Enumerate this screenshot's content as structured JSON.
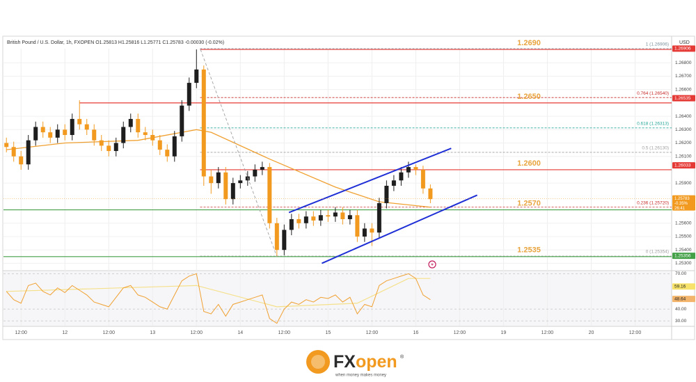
{
  "chart_data": {
    "type": "candlestick",
    "title": "British Pound / U.S. Dollar, 1h, FXOPEN  O1.25813  H1.25816  L1.25771  C1.25783  -0.00030 (-0.02%)",
    "currency": "USD",
    "up_color": "#1e1e1e",
    "down_color": "#f29a1f",
    "x": [
      -16,
      -14,
      -12,
      -10,
      -8,
      -6,
      -4,
      -2,
      0,
      2,
      4,
      6,
      8,
      10,
      12,
      14,
      16,
      18,
      20,
      22,
      24,
      26,
      28,
      30,
      32,
      34,
      36,
      38,
      40,
      42,
      44,
      46,
      48,
      50,
      52,
      54,
      56,
      58,
      60,
      62,
      64,
      66,
      68,
      70,
      72,
      74,
      76,
      78,
      80,
      82,
      84,
      86,
      88,
      90,
      92,
      94,
      96,
      98,
      100
    ],
    "open": [
      1.262,
      1.2617,
      1.261,
      1.2604,
      1.2622,
      1.2632,
      1.2628,
      1.2624,
      1.263,
      1.2626,
      1.2638,
      1.2634,
      1.263,
      1.2622,
      1.2618,
      1.2614,
      1.262,
      1.2632,
      1.2638,
      1.2628,
      1.2626,
      1.2622,
      1.2615,
      1.261,
      1.2625,
      1.2648,
      1.2665,
      1.2675,
      1.2595,
      1.259,
      1.2598,
      1.2578,
      1.259,
      1.2592,
      1.2595,
      1.26,
      1.2602,
      1.256,
      1.254,
      1.2555,
      1.2563,
      1.256,
      1.2565,
      1.2562,
      1.2566,
      1.2565,
      1.2568,
      1.2563,
      1.2566,
      1.255,
      1.2556,
      1.2553,
      1.2575,
      1.2588,
      1.2592,
      1.2598,
      1.2602,
      1.26,
      1.2586
    ],
    "high": [
      1.2624,
      1.2621,
      1.2614,
      1.2626,
      1.2636,
      1.2636,
      1.2632,
      1.2634,
      1.2634,
      1.2642,
      1.2652,
      1.2638,
      1.2634,
      1.2626,
      1.2622,
      1.2624,
      1.2636,
      1.2642,
      1.2642,
      1.2632,
      1.263,
      1.2626,
      1.2619,
      1.2629,
      1.2652,
      1.2669,
      1.269,
      1.2678,
      1.26,
      1.2602,
      1.2602,
      1.2594,
      1.2596,
      1.2599,
      1.2604,
      1.2606,
      1.2605,
      1.2564,
      1.2559,
      1.2567,
      1.2567,
      1.2569,
      1.2569,
      1.257,
      1.257,
      1.2572,
      1.2572,
      1.257,
      1.257,
      1.256,
      1.256,
      1.2579,
      1.2592,
      1.2596,
      1.2602,
      1.2606,
      1.2604,
      1.2603,
      1.2589
    ],
    "low": [
      1.2613,
      1.2606,
      1.26,
      1.26,
      1.2618,
      1.2624,
      1.262,
      1.262,
      1.2622,
      1.2622,
      1.263,
      1.2626,
      1.2618,
      1.2614,
      1.261,
      1.261,
      1.2616,
      1.2628,
      1.2624,
      1.2622,
      1.2618,
      1.2611,
      1.2606,
      1.2606,
      1.2621,
      1.2644,
      1.2661,
      1.2588,
      1.2582,
      1.2586,
      1.2574,
      1.2574,
      1.2586,
      1.2588,
      1.2591,
      1.2596,
      1.2556,
      1.2535,
      1.2536,
      1.2551,
      1.2556,
      1.2556,
      1.2558,
      1.2558,
      1.2561,
      1.2561,
      1.2559,
      1.2559,
      1.2546,
      1.2546,
      1.2543,
      1.2549,
      1.2571,
      1.2584,
      1.2588,
      1.2594,
      1.2596,
      1.2582,
      1.2575
    ],
    "close": [
      1.2617,
      1.261,
      1.2604,
      1.2622,
      1.2632,
      1.2628,
      1.2624,
      1.263,
      1.2626,
      1.2638,
      1.2634,
      1.263,
      1.2622,
      1.2618,
      1.2614,
      1.262,
      1.2632,
      1.2638,
      1.2628,
      1.2626,
      1.2622,
      1.2615,
      1.261,
      1.2625,
      1.2648,
      1.2665,
      1.2675,
      1.2595,
      1.259,
      1.2598,
      1.2578,
      1.259,
      1.2592,
      1.2595,
      1.26,
      1.2602,
      1.256,
      1.254,
      1.2555,
      1.2563,
      1.256,
      1.2565,
      1.2562,
      1.2566,
      1.2565,
      1.2568,
      1.2563,
      1.2566,
      1.255,
      1.2556,
      1.2553,
      1.2575,
      1.2588,
      1.2592,
      1.2598,
      1.2602,
      1.26,
      1.2586,
      1.2578
    ],
    "xlim": [
      -16.8,
      166
    ],
    "xticks": [
      {
        "value": -12,
        "label": "12:00"
      },
      {
        "value": 0,
        "label": "12"
      },
      {
        "value": 12,
        "label": "12:00"
      },
      {
        "value": 24,
        "label": "13"
      },
      {
        "value": 36,
        "label": "12:00"
      },
      {
        "value": 48,
        "label": "14"
      },
      {
        "value": 60,
        "label": "12:00"
      },
      {
        "value": 72,
        "label": "15"
      },
      {
        "value": 84,
        "label": "12:00"
      },
      {
        "value": 96,
        "label": "16"
      },
      {
        "value": 108,
        "label": "12:00"
      },
      {
        "value": 120,
        "label": "19"
      },
      {
        "value": 132,
        "label": "12:00"
      },
      {
        "value": 144,
        "label": "20"
      },
      {
        "value": 156,
        "label": "12:00"
      }
    ],
    "ylim": [
      1.2525,
      1.2702
    ],
    "yticks": [
      {
        "value": 1.253,
        "label": "1.25300"
      },
      {
        "value": 1.254,
        "label": "1.25400"
      },
      {
        "value": 1.255,
        "label": "1.25500"
      },
      {
        "value": 1.256,
        "label": "1.25600"
      },
      {
        "value": 1.259,
        "label": "1.25900"
      },
      {
        "value": 1.261,
        "label": "1.26100"
      },
      {
        "value": 1.262,
        "label": "1.26200"
      },
      {
        "value": 1.263,
        "label": "1.26300"
      },
      {
        "value": 1.264,
        "label": "1.26400"
      },
      {
        "value": 1.266,
        "label": "1.26600"
      },
      {
        "value": 1.267,
        "label": "1.26700"
      },
      {
        "value": 1.268,
        "label": "1.26800"
      }
    ],
    "grid": true,
    "ma": {
      "color": "#f0a030",
      "x": [
        -16,
        0,
        20,
        36,
        40,
        56,
        74,
        86,
        100
      ],
      "values": [
        1.2615,
        1.262,
        1.2622,
        1.263,
        1.2628,
        1.2608,
        1.2587,
        1.2576,
        1.2572
      ]
    },
    "levels": [
      {
        "value": 1.269,
        "label": "1.2690",
        "color": "#e53935",
        "from": 37
      },
      {
        "value": 1.265,
        "label": "1.2650",
        "color": "#e53935",
        "from": 4
      },
      {
        "value": 1.26,
        "label": "1.2600",
        "color": "#e53935",
        "from": 37
      },
      {
        "value": 1.257,
        "label": "1.2570",
        "color": "#43a047",
        "from": -16.8
      },
      {
        "value": 1.2535,
        "label": "1.2535",
        "color": "#43a047",
        "from": -16.8
      }
    ],
    "fib": [
      {
        "value": 1.26906,
        "label": "1 (1.26906)",
        "color": "#78909c",
        "from": 37
      },
      {
        "value": 1.2654,
        "label": "0.764 (1.26540)",
        "color": "#c62828",
        "from": 37
      },
      {
        "value": 1.26313,
        "label": "0.618 (1.26313)",
        "color": "#26a69a",
        "from": 37
      },
      {
        "value": 1.2613,
        "label": "0.5 (1.26130)",
        "color": "#9e9e9e",
        "from": 37
      },
      {
        "value": 1.2572,
        "label": "0.236 (1.25720)",
        "color": "#c62828",
        "from": 37
      },
      {
        "value": 1.25354,
        "label": "0 (1.25354)",
        "color": "#9e9e9e",
        "from": 37
      }
    ],
    "trendlines": [
      {
        "color": "#1f2fd6",
        "x": [
          61.3,
          105.7
        ],
        "values": [
          1.2568,
          1.2616
        ]
      },
      {
        "color": "#1f2fd6",
        "x": [
          70.3,
          112.8
        ],
        "values": [
          1.253,
          1.2581
        ]
      },
      {
        "color": "#9e9e9e",
        "x": [
          37.1,
          58
        ],
        "values": [
          1.269,
          1.2535
        ]
      }
    ],
    "price_labels": [
      {
        "value": 1.26906,
        "label": "1.26906",
        "color": "#e53935"
      },
      {
        "value": 1.26535,
        "label": "1.26535",
        "color": "#e53935"
      },
      {
        "value": 1.26033,
        "label": "1.26033",
        "color": "#e53935"
      },
      {
        "value": 1.25716,
        "label": "1.25716",
        "color": "#43a047"
      },
      {
        "value": 1.2571,
        "label": "1.25710",
        "color": "#ffffff"
      },
      {
        "value": 1.25356,
        "label": "1.25356",
        "color": "#43a047"
      }
    ],
    "last": {
      "value": 1.25783,
      "lines": [
        "1.25783",
        "-0.35%",
        "26:41"
      ],
      "color": "#f29a1f"
    },
    "rsi": {
      "color": "#f0a030",
      "values": [
        55,
        48,
        45,
        60,
        62,
        55,
        52,
        58,
        54,
        60,
        56,
        52,
        46,
        44,
        42,
        50,
        58,
        60,
        52,
        50,
        46,
        42,
        40,
        52,
        64,
        68,
        70,
        38,
        36,
        44,
        34,
        44,
        46,
        48,
        50,
        52,
        32,
        28,
        40,
        46,
        44,
        48,
        46,
        50,
        49,
        52,
        46,
        50,
        36,
        44,
        42,
        60,
        64,
        66,
        68,
        70,
        66,
        52,
        48
      ],
      "signal": {
        "color": "#f5e08a",
        "x": [
          -16,
          36,
          58,
          80,
          94,
          100
        ],
        "values": [
          55,
          60,
          42,
          45,
          66,
          66
        ]
      },
      "ylim": [
        26,
        72
      ],
      "yticks": [
        {
          "value": 70,
          "label": "70.00"
        },
        {
          "value": 40,
          "label": "40.00"
        },
        {
          "value": 30,
          "label": "30.00"
        }
      ],
      "price_labels": [
        {
          "value": 59.16,
          "label": "59.16",
          "color": "#f7e36b"
        },
        {
          "value": 48.64,
          "label": "48.64",
          "color": "#f2b56b"
        }
      ]
    }
  },
  "brand": {
    "prefix": "FX",
    "suffix": "open",
    "mark": "®",
    "tagline": "when money makes money"
  }
}
